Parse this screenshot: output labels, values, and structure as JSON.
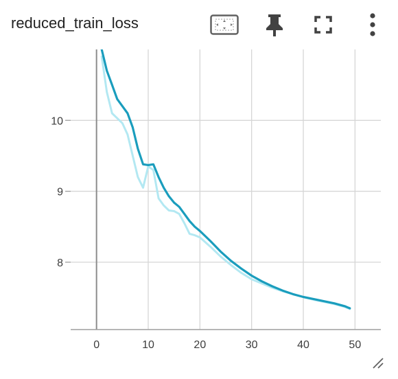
{
  "card": {
    "title": "reduced_train_loss"
  },
  "toolbar": {
    "icons": [
      "fit-domain-icon",
      "pin-icon",
      "fullscreen-icon",
      "more-vert-icon"
    ]
  },
  "colors": {
    "smoothed": "#1a9dbd",
    "raw": "#b3e8f2",
    "grid": "#d6d6d6",
    "axis": "#9e9e9e",
    "zero_line": "#8c8c8c"
  },
  "chart_data": {
    "type": "line",
    "title": "",
    "xlabel": "",
    "ylabel": "",
    "xlim": [
      -5,
      55
    ],
    "ylim": [
      7.05,
      11.0
    ],
    "x_ticks": [
      0,
      10,
      20,
      30,
      40,
      50
    ],
    "y_ticks": [
      8,
      9,
      10
    ],
    "grid": true,
    "series": [
      {
        "x": [
          1,
          2,
          3,
          4,
          5,
          6,
          7,
          8,
          9,
          10,
          11,
          12,
          13,
          14,
          15,
          16,
          17,
          18,
          19,
          20,
          22,
          24,
          26,
          28,
          30,
          32,
          34,
          36,
          38,
          40,
          42,
          44,
          46,
          48,
          49
        ],
        "y": [
          11.0,
          10.7,
          10.5,
          10.3,
          10.2,
          10.1,
          9.9,
          9.6,
          9.38,
          9.37,
          9.38,
          9.2,
          9.05,
          8.93,
          8.84,
          8.78,
          8.68,
          8.58,
          8.5,
          8.44,
          8.3,
          8.15,
          8.02,
          7.91,
          7.81,
          7.73,
          7.66,
          7.6,
          7.55,
          7.51,
          7.48,
          7.45,
          7.42,
          7.38,
          7.35
        ]
      },
      {
        "x": [
          1,
          2,
          3,
          4,
          5,
          6,
          7,
          8,
          9,
          10,
          11,
          12,
          13,
          14,
          15,
          16,
          17,
          18,
          19,
          20,
          22,
          24,
          26,
          28,
          30,
          32,
          34,
          36,
          38,
          40,
          42,
          44,
          46,
          48,
          49
        ],
        "y": [
          10.9,
          10.4,
          10.1,
          10.03,
          9.96,
          9.8,
          9.5,
          9.2,
          9.05,
          9.35,
          9.3,
          8.9,
          8.8,
          8.73,
          8.72,
          8.68,
          8.55,
          8.4,
          8.38,
          8.35,
          8.22,
          8.08,
          7.96,
          7.85,
          7.76,
          7.7,
          7.64,
          7.59,
          7.55,
          7.51,
          7.47,
          7.44,
          7.41,
          7.37,
          7.34
        ]
      }
    ]
  }
}
